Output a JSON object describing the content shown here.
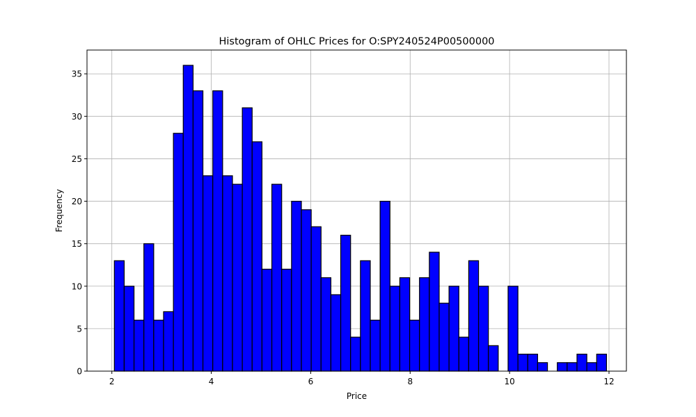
{
  "chart_data": {
    "type": "bar",
    "title": "Histogram of OHLC Prices for O:SPY240524P00500000",
    "xlabel": "Price",
    "ylabel": "Frequency",
    "bin_start": 2.05,
    "bin_end": 11.95,
    "bins": 50,
    "values": [
      13,
      10,
      6,
      15,
      6,
      7,
      28,
      36,
      33,
      23,
      33,
      23,
      22,
      31,
      27,
      12,
      22,
      12,
      20,
      19,
      17,
      11,
      9,
      16,
      4,
      13,
      6,
      20,
      10,
      11,
      6,
      11,
      14,
      8,
      10,
      4,
      13,
      10,
      3,
      0,
      10,
      2,
      2,
      1,
      0,
      1,
      1,
      2,
      1,
      2
    ],
    "xlim": [
      1.5,
      12.35
    ],
    "ylim": [
      0,
      37.8
    ],
    "xticks": [
      2,
      4,
      6,
      8,
      10,
      12
    ],
    "xtick_labels": [
      "2",
      "4",
      "6",
      "8",
      "10",
      "12"
    ],
    "yticks": [
      0,
      5,
      10,
      15,
      20,
      25,
      30,
      35
    ],
    "ytick_labels": [
      "0",
      "5",
      "10",
      "15",
      "20",
      "25",
      "30",
      "35"
    ],
    "grid": true,
    "bar_color": "#0000ff",
    "edge_color": "#000000",
    "grid_color": "#b0b0b0"
  }
}
